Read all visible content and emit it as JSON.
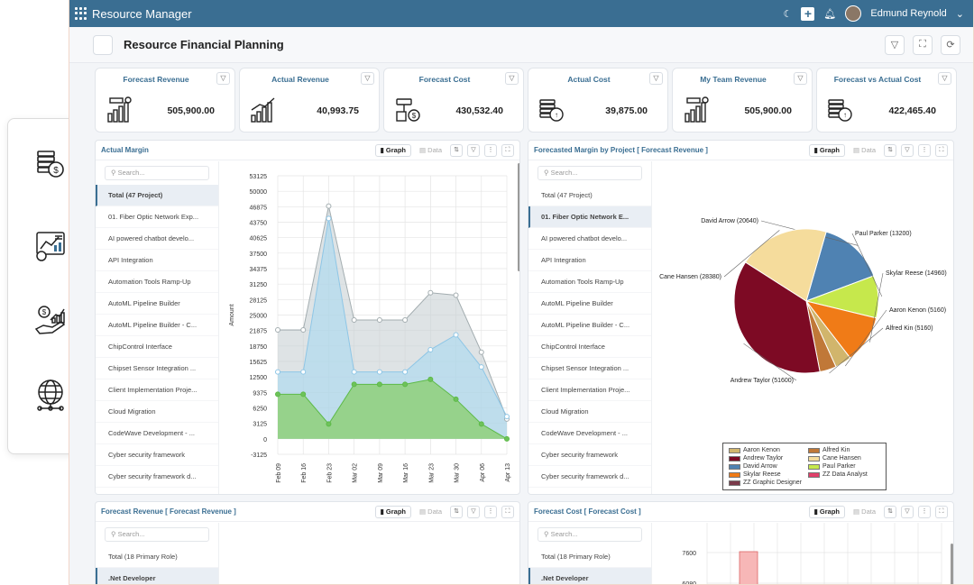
{
  "app": {
    "title": "Resource Manager",
    "user": "Edmund Reynold"
  },
  "page": {
    "title": "Resource Financial Planning"
  },
  "kpis": [
    {
      "title": "Forecast Revenue",
      "value": "505,900.00",
      "icon": "revenue-chart-icon"
    },
    {
      "title": "Actual Revenue",
      "value": "40,993.75",
      "icon": "growth-bars-icon"
    },
    {
      "title": "Forecast Cost",
      "value": "430,532.40",
      "icon": "cost-telescope-icon"
    },
    {
      "title": "Actual Cost",
      "value": "39,875.00",
      "icon": "coin-stack-icon"
    },
    {
      "title": "My Team Revenue",
      "value": "505,900.00",
      "icon": "revenue-chart-icon"
    },
    {
      "title": "Forecast vs Actual Cost",
      "value": "422,465.40",
      "icon": "coin-stack-icon"
    }
  ],
  "ui": {
    "graph": "Graph",
    "data": "Data",
    "search": "Search..."
  },
  "panels": {
    "actual_margin": {
      "title": "Actual Margin",
      "items": [
        "Total (47 Project)",
        "01. Fiber Optic Network Exp...",
        "AI powered chatbot develo...",
        "API Integration",
        "Automation Tools Ramp-Up",
        "AutoML Pipeline Builder",
        "AutoML Pipeline Builder - C...",
        "ChipControl Interface",
        "Chipset Sensor Integration ...",
        "Client Implementation Proje...",
        "Cloud Migration",
        "CodeWave Development - ...",
        "Cyber security framework",
        "Cyber security framework d..."
      ]
    },
    "forecast_margin": {
      "title": "Forecasted Margin by Project [ Forecast Revenue ]",
      "items": [
        "Total (47 Project)",
        "01. Fiber Optic Network E...",
        "AI powered chatbot develo...",
        "API Integration",
        "Automation Tools Ramp-Up",
        "AutoML Pipeline Builder",
        "AutoML Pipeline Builder - C...",
        "ChipControl Interface",
        "Chipset Sensor Integration ...",
        "Client Implementation Proje...",
        "Cloud Migration",
        "CodeWave Development - ...",
        "Cyber security framework",
        "Cyber security framework d..."
      ]
    },
    "forecast_revenue": {
      "title": "Forecast Revenue [ Forecast Revenue ]",
      "items": [
        "Total (18 Primary Role)",
        ".Net Developer"
      ]
    },
    "forecast_cost": {
      "title": "Forecast Cost [ Forecast Cost ]",
      "items": [
        "Total (18 Primary Role)",
        ".Net Developer"
      ]
    }
  },
  "chart_data": [
    {
      "type": "area",
      "title": "Actual Margin",
      "xlabel": "",
      "ylabel": "Amount",
      "x": [
        "Feb 09",
        "Feb 16",
        "Feb 23",
        "Mar 02",
        "Mar 09",
        "Mar 16",
        "Mar 23",
        "Mar 30",
        "Apr 06",
        "Apr 13"
      ],
      "yticks": [
        "53125",
        "50000",
        "46875",
        "43750",
        "40625",
        "37500",
        "34375",
        "31250",
        "28125",
        "25000",
        "21875",
        "18750",
        "15625",
        "12500",
        "9375",
        "6250",
        "3125",
        "0",
        "-3125"
      ],
      "ylim": [
        -3125,
        53125
      ],
      "series": [
        {
          "name": "",
          "color": "#c8d1d3",
          "values": [
            22000,
            22000,
            47000,
            24000,
            24000,
            24000,
            29500,
            29000,
            17500,
            4000
          ]
        },
        {
          "name": "",
          "color": "#a8d8f0",
          "values": [
            13500,
            13500,
            44500,
            13500,
            13500,
            13500,
            18000,
            21000,
            14500,
            4500
          ]
        },
        {
          "name": "",
          "color": "#8fd07a",
          "values": [
            9000,
            9000,
            3000,
            11000,
            11000,
            11000,
            12000,
            8000,
            3000,
            0
          ]
        }
      ]
    },
    {
      "type": "pie",
      "title": "Forecasted Margin by Project [ Forecast Revenue ]",
      "slices": [
        {
          "name": "David Arrow",
          "value": 20640,
          "label": "David Arrow (20640)",
          "color": "#4f82b2"
        },
        {
          "name": "Paul Parker",
          "value": 13200,
          "label": "Paul Parker (13200)",
          "color": "#c6e84c"
        },
        {
          "name": "Skylar Reese",
          "value": 14960,
          "label": "Skylar Reese (14960)",
          "color": "#f07b17"
        },
        {
          "name": "Aaron Kenon",
          "value": 5160,
          "label": "Aaron Kenon (5160)",
          "color": "#d1b56c"
        },
        {
          "name": "Alfred Kin",
          "value": 5160,
          "label": "Alfred Kin (5160)",
          "color": "#c07838"
        },
        {
          "name": "Andrew Taylor",
          "value": 51600,
          "label": "Andrew Taylor (51600)",
          "color": "#7d0a24"
        },
        {
          "name": "Cane Hansen",
          "value": 28380,
          "label": "Cane Hansen (28380)",
          "color": "#f5dc9c"
        }
      ],
      "legend": [
        {
          "name": "Aaron Kenon",
          "color": "#d1b56c"
        },
        {
          "name": "Alfred Kin",
          "color": "#c07838"
        },
        {
          "name": "Andrew Taylor",
          "color": "#7d0a24"
        },
        {
          "name": "Cane Hansen",
          "color": "#f5dc9c"
        },
        {
          "name": "David Arrow",
          "color": "#4f82b2"
        },
        {
          "name": "Paul Parker",
          "color": "#c6e84c"
        },
        {
          "name": "Skylar Reese",
          "color": "#f07b17"
        },
        {
          "name": "ZZ Data Analyst",
          "color": "#e0406a"
        },
        {
          "name": "ZZ Graphic Designer",
          "color": "#7a3a4a"
        }
      ]
    },
    {
      "type": "bar",
      "title": "Forecast Cost [ Forecast Cost ]",
      "yticks": [
        "7600",
        "6080"
      ]
    }
  ]
}
